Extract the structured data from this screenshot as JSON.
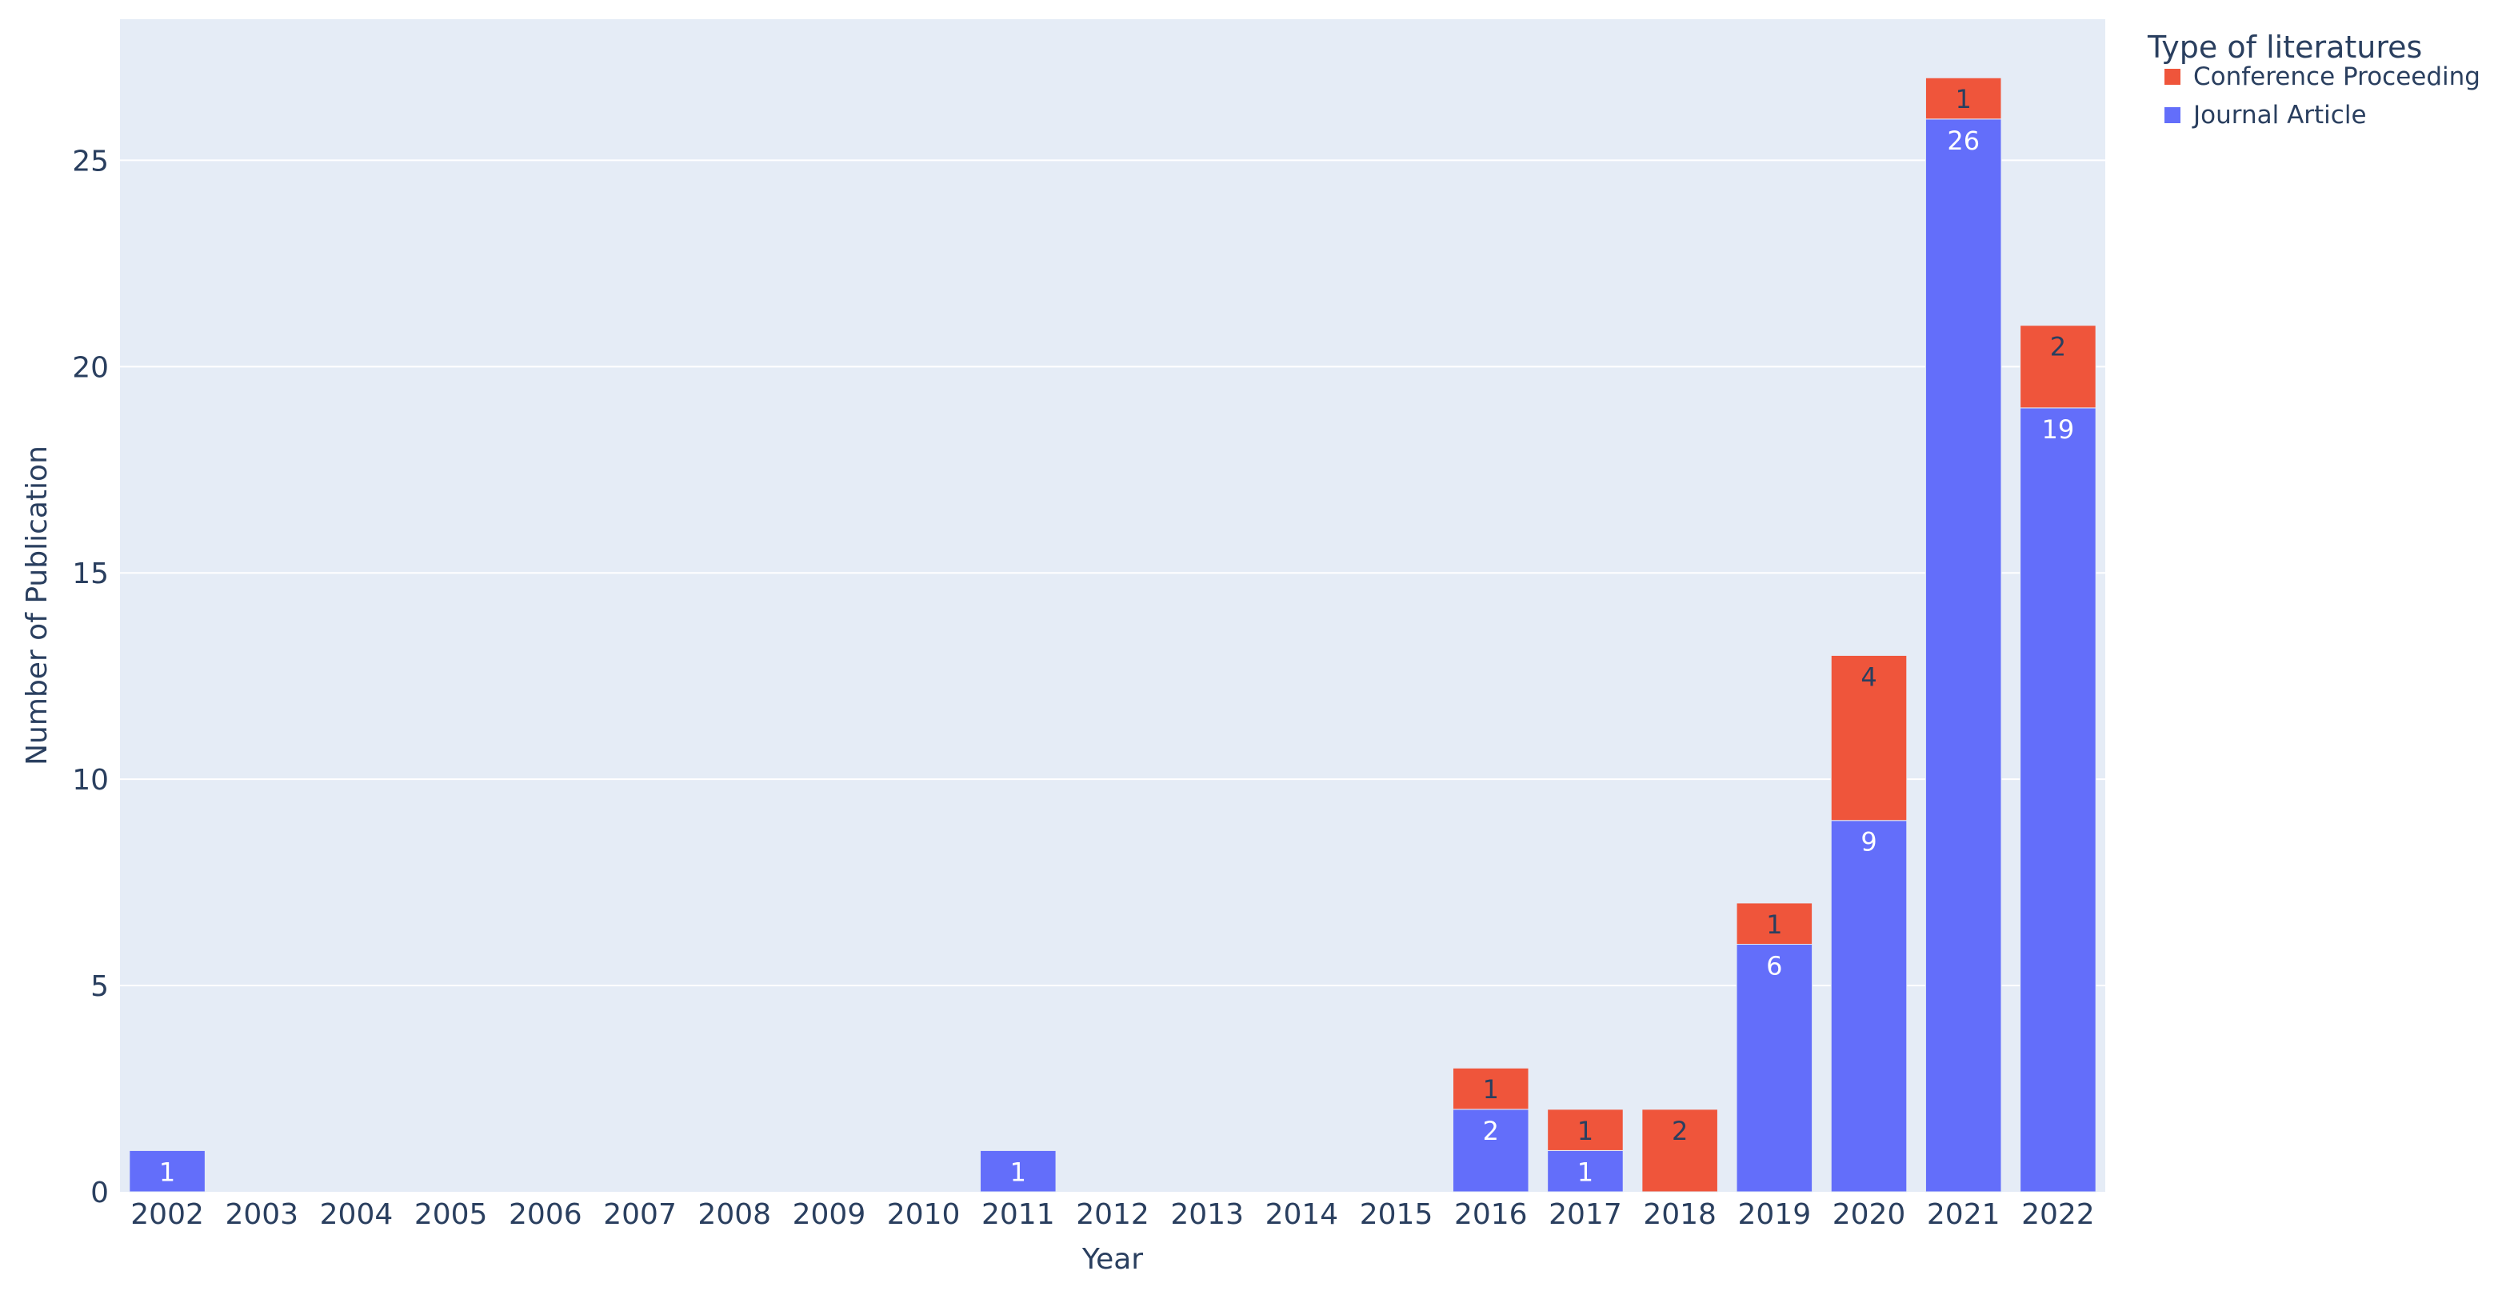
{
  "chart_data": {
    "type": "bar",
    "barmode": "stack",
    "categories": [
      "2002",
      "2003",
      "2004",
      "2005",
      "2006",
      "2007",
      "2008",
      "2009",
      "2010",
      "2011",
      "2012",
      "2013",
      "2014",
      "2015",
      "2016",
      "2017",
      "2018",
      "2019",
      "2020",
      "2021",
      "2022"
    ],
    "series": [
      {
        "name": "Journal Article",
        "color": "#636efa",
        "label_color": "#ffffff",
        "values": [
          1,
          0,
          0,
          0,
          0,
          0,
          0,
          0,
          0,
          1,
          0,
          0,
          0,
          0,
          2,
          1,
          0,
          6,
          9,
          26,
          19
        ]
      },
      {
        "name": "Conference Proceeding",
        "color": "#ef553b",
        "label_color": "#2a3f5f",
        "values": [
          0,
          0,
          0,
          0,
          0,
          0,
          0,
          0,
          0,
          0,
          0,
          0,
          0,
          0,
          1,
          1,
          2,
          1,
          4,
          1,
          2
        ]
      }
    ],
    "xlabel": "Year",
    "ylabel": "Number of Publication",
    "ylim": [
      0,
      28.42
    ],
    "yticks": [
      0,
      5,
      10,
      15,
      20,
      25
    ],
    "grid": true,
    "legend": {
      "title": "Type of literatures",
      "placement": "top-right, outside plot",
      "order": [
        "Conference Proceeding",
        "Journal Article"
      ]
    },
    "colors": {
      "plot_background": "#e5ecf6",
      "grid": "#ffffff",
      "text": "#2a3f5f"
    }
  }
}
